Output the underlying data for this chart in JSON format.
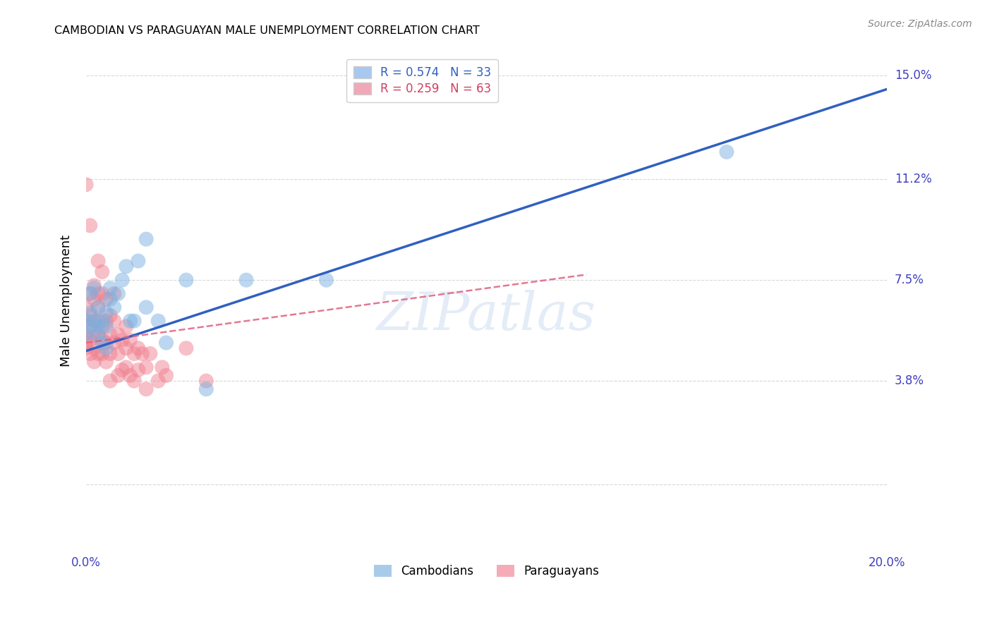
{
  "title": "CAMBODIAN VS PARAGUAYAN MALE UNEMPLOYMENT CORRELATION CHART",
  "source": "Source: ZipAtlas.com",
  "ylabel": "Male Unemployment",
  "xlim": [
    0.0,
    0.2
  ],
  "ylim": [
    -0.025,
    0.16
  ],
  "yticks": [
    0.0,
    0.038,
    0.075,
    0.112,
    0.15
  ],
  "ytick_labels": [
    "",
    "3.8%",
    "7.5%",
    "11.2%",
    "15.0%"
  ],
  "xticks": [
    0.0,
    0.04,
    0.08,
    0.12,
    0.16,
    0.2
  ],
  "xtick_labels": [
    "0.0%",
    "",
    "",
    "",
    "",
    "20.0%"
  ],
  "legend_entries": [
    {
      "label": "R = 0.574   N = 33",
      "color": "#a8c8f0",
      "text_color": "#3060c0"
    },
    {
      "label": "R = 0.259   N = 63",
      "color": "#f0a8b8",
      "text_color": "#d04060"
    }
  ],
  "cambodian_color": "#7ab0e0",
  "paraguayan_color": "#f08090",
  "cambodian_line_color": "#3060c0",
  "paraguayan_line_color": "#e06080",
  "watermark": "ZIPatlas",
  "background_color": "#ffffff",
  "grid_color": "#d8d8d8",
  "cambodian_points": [
    [
      0.0,
      0.06
    ],
    [
      0.0,
      0.055
    ],
    [
      0.001,
      0.063
    ],
    [
      0.001,
      0.058
    ],
    [
      0.001,
      0.07
    ],
    [
      0.002,
      0.06
    ],
    [
      0.002,
      0.072
    ],
    [
      0.003,
      0.065
    ],
    [
      0.003,
      0.055
    ],
    [
      0.003,
      0.058
    ],
    [
      0.004,
      0.06
    ],
    [
      0.004,
      0.052
    ],
    [
      0.005,
      0.063
    ],
    [
      0.005,
      0.058
    ],
    [
      0.005,
      0.05
    ],
    [
      0.006,
      0.068
    ],
    [
      0.006,
      0.072
    ],
    [
      0.007,
      0.065
    ],
    [
      0.008,
      0.07
    ],
    [
      0.009,
      0.075
    ],
    [
      0.01,
      0.08
    ],
    [
      0.011,
      0.06
    ],
    [
      0.012,
      0.06
    ],
    [
      0.013,
      0.082
    ],
    [
      0.015,
      0.09
    ],
    [
      0.015,
      0.065
    ],
    [
      0.018,
      0.06
    ],
    [
      0.02,
      0.052
    ],
    [
      0.025,
      0.075
    ],
    [
      0.03,
      0.035
    ],
    [
      0.04,
      0.075
    ],
    [
      0.06,
      0.075
    ],
    [
      0.16,
      0.122
    ]
  ],
  "paraguayan_points": [
    [
      0.0,
      0.055
    ],
    [
      0.0,
      0.052
    ],
    [
      0.0,
      0.05
    ],
    [
      0.0,
      0.06
    ],
    [
      0.0,
      0.065
    ],
    [
      0.0,
      0.11
    ],
    [
      0.001,
      0.048
    ],
    [
      0.001,
      0.053
    ],
    [
      0.001,
      0.058
    ],
    [
      0.001,
      0.062
    ],
    [
      0.001,
      0.07
    ],
    [
      0.001,
      0.095
    ],
    [
      0.002,
      0.045
    ],
    [
      0.002,
      0.05
    ],
    [
      0.002,
      0.055
    ],
    [
      0.002,
      0.06
    ],
    [
      0.002,
      0.068
    ],
    [
      0.002,
      0.073
    ],
    [
      0.003,
      0.048
    ],
    [
      0.003,
      0.055
    ],
    [
      0.003,
      0.06
    ],
    [
      0.003,
      0.065
    ],
    [
      0.003,
      0.07
    ],
    [
      0.003,
      0.082
    ],
    [
      0.004,
      0.048
    ],
    [
      0.004,
      0.053
    ],
    [
      0.004,
      0.058
    ],
    [
      0.004,
      0.07
    ],
    [
      0.004,
      0.078
    ],
    [
      0.005,
      0.045
    ],
    [
      0.005,
      0.052
    ],
    [
      0.005,
      0.06
    ],
    [
      0.005,
      0.068
    ],
    [
      0.006,
      0.048
    ],
    [
      0.006,
      0.055
    ],
    [
      0.006,
      0.062
    ],
    [
      0.006,
      0.038
    ],
    [
      0.007,
      0.052
    ],
    [
      0.007,
      0.06
    ],
    [
      0.007,
      0.07
    ],
    [
      0.008,
      0.048
    ],
    [
      0.008,
      0.055
    ],
    [
      0.008,
      0.04
    ],
    [
      0.009,
      0.053
    ],
    [
      0.009,
      0.042
    ],
    [
      0.01,
      0.05
    ],
    [
      0.01,
      0.058
    ],
    [
      0.01,
      0.043
    ],
    [
      0.011,
      0.053
    ],
    [
      0.011,
      0.04
    ],
    [
      0.012,
      0.038
    ],
    [
      0.012,
      0.048
    ],
    [
      0.013,
      0.05
    ],
    [
      0.013,
      0.042
    ],
    [
      0.014,
      0.048
    ],
    [
      0.015,
      0.035
    ],
    [
      0.015,
      0.043
    ],
    [
      0.016,
      0.048
    ],
    [
      0.018,
      0.038
    ],
    [
      0.019,
      0.043
    ],
    [
      0.02,
      0.04
    ],
    [
      0.025,
      0.05
    ],
    [
      0.03,
      0.038
    ]
  ],
  "cam_line_x": [
    0.0,
    0.2
  ],
  "cam_line_y": [
    0.049,
    0.145
  ],
  "par_line_x": [
    0.0,
    0.125
  ],
  "par_line_y": [
    0.052,
    0.077
  ]
}
